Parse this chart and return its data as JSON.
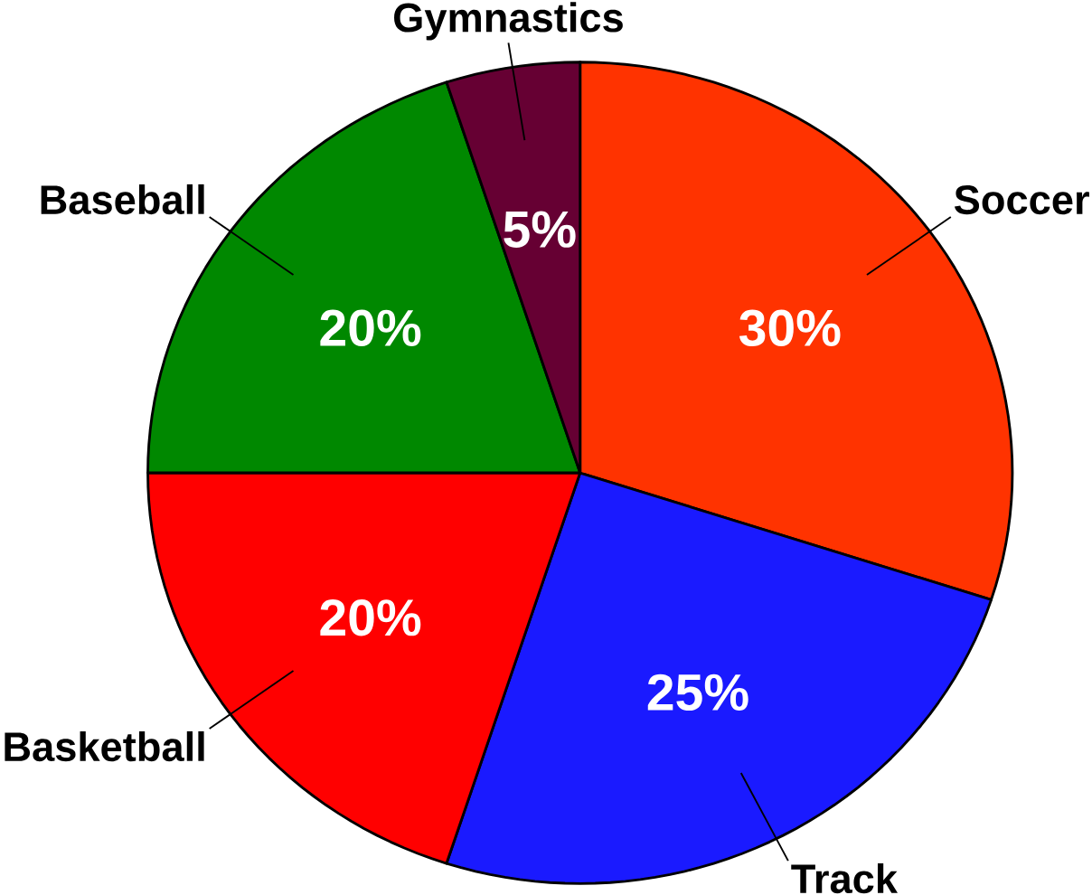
{
  "chart_data": {
    "type": "pie",
    "categories": [
      "Soccer",
      "Track",
      "Basketball",
      "Baseball",
      "Gymnastics"
    ],
    "values": [
      30,
      25,
      20,
      20,
      5
    ],
    "colors": [
      "#ff3300",
      "#1a1aff",
      "#ff0000",
      "#008800",
      "#660033"
    ],
    "value_labels": [
      "30%",
      "25%",
      "20%",
      "20%",
      "5%"
    ]
  }
}
